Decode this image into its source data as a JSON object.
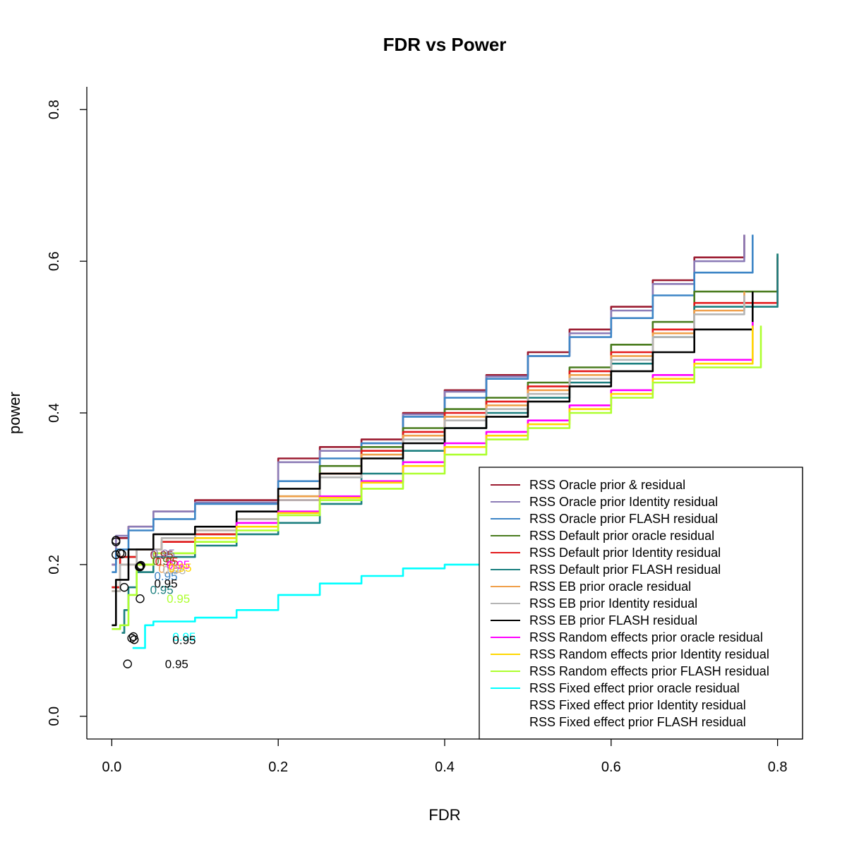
{
  "chart_data": {
    "type": "line",
    "title": "FDR vs Power",
    "xlabel": "FDR",
    "ylabel": "power",
    "xlim": [
      -0.03,
      0.83
    ],
    "ylim": [
      -0.03,
      0.83
    ],
    "x_ticks": [
      "0.0",
      "0.2",
      "0.4",
      "0.6",
      "0.8"
    ],
    "y_ticks": [
      "0.0",
      "0.2",
      "0.4",
      "0.6",
      "0.8"
    ],
    "grid": false,
    "legend_position": "bottom-right",
    "threshold_label": "0.95",
    "series": [
      {
        "name": "RSS Oracle prior & residual",
        "color": "#9b1b30",
        "x": [
          0.0,
          0.005,
          0.02,
          0.05,
          0.1,
          0.2,
          0.25,
          0.3,
          0.35,
          0.4,
          0.45,
          0.5,
          0.55,
          0.6,
          0.65,
          0.7,
          0.76
        ],
        "y": [
          0.2,
          0.235,
          0.25,
          0.27,
          0.285,
          0.34,
          0.355,
          0.365,
          0.4,
          0.43,
          0.45,
          0.48,
          0.51,
          0.54,
          0.575,
          0.605,
          0.635
        ],
        "thresholds": [
          {
            "x": 0.005,
            "y": 0.232
          },
          {
            "x": 0.06,
            "y": 0.213
          }
        ]
      },
      {
        "name": "RSS Oracle prior Identity residual",
        "color": "#8c7cb7",
        "x": [
          0.0,
          0.005,
          0.02,
          0.05,
          0.1,
          0.2,
          0.25,
          0.3,
          0.35,
          0.4,
          0.45,
          0.5,
          0.55,
          0.6,
          0.65,
          0.7,
          0.76
        ],
        "y": [
          0.2,
          0.238,
          0.25,
          0.27,
          0.282,
          0.335,
          0.35,
          0.36,
          0.398,
          0.428,
          0.448,
          0.475,
          0.505,
          0.535,
          0.57,
          0.6,
          0.635
        ],
        "thresholds": [
          {
            "x": 0.005,
            "y": 0.23
          },
          {
            "x": 0.062,
            "y": 0.215
          }
        ]
      },
      {
        "name": "RSS Oracle prior FLASH residual",
        "color": "#3d85c6",
        "x": [
          0.0,
          0.005,
          0.02,
          0.05,
          0.1,
          0.2,
          0.25,
          0.3,
          0.35,
          0.4,
          0.45,
          0.5,
          0.55,
          0.6,
          0.65,
          0.7,
          0.77
        ],
        "y": [
          0.19,
          0.22,
          0.245,
          0.26,
          0.28,
          0.31,
          0.34,
          0.36,
          0.395,
          0.42,
          0.445,
          0.475,
          0.5,
          0.525,
          0.555,
          0.585,
          0.635
        ],
        "thresholds": [
          {
            "x": 0.005,
            "y": 0.213
          },
          {
            "x": 0.065,
            "y": 0.185
          }
        ]
      },
      {
        "name": "RSS Default prior oracle residual",
        "color": "#4a7c1f",
        "x": [
          0.0,
          0.01,
          0.03,
          0.06,
          0.1,
          0.15,
          0.2,
          0.25,
          0.3,
          0.35,
          0.4,
          0.45,
          0.5,
          0.55,
          0.6,
          0.65,
          0.7,
          0.8
        ],
        "y": [
          0.17,
          0.21,
          0.22,
          0.23,
          0.24,
          0.26,
          0.29,
          0.33,
          0.355,
          0.38,
          0.405,
          0.42,
          0.44,
          0.46,
          0.49,
          0.52,
          0.56,
          0.61
        ],
        "thresholds": [
          {
            "x": 0.01,
            "y": 0.215
          },
          {
            "x": 0.063,
            "y": 0.205
          }
        ]
      },
      {
        "name": "RSS Default prior Identity residual",
        "color": "#e31a1c",
        "x": [
          0.0,
          0.01,
          0.03,
          0.06,
          0.1,
          0.15,
          0.2,
          0.25,
          0.3,
          0.35,
          0.4,
          0.45,
          0.5,
          0.55,
          0.6,
          0.65,
          0.7,
          0.8
        ],
        "y": [
          0.17,
          0.21,
          0.22,
          0.23,
          0.24,
          0.255,
          0.285,
          0.32,
          0.35,
          0.375,
          0.4,
          0.415,
          0.435,
          0.455,
          0.48,
          0.51,
          0.545,
          0.605
        ],
        "thresholds": [
          {
            "x": 0.012,
            "y": 0.214
          },
          {
            "x": 0.066,
            "y": 0.204
          }
        ]
      },
      {
        "name": "RSS Default prior FLASH residual",
        "color": "#1b7f7f",
        "x": [
          0.012,
          0.015,
          0.02,
          0.03,
          0.05,
          0.1,
          0.15,
          0.2,
          0.25,
          0.3,
          0.35,
          0.4,
          0.45,
          0.5,
          0.55,
          0.6,
          0.65,
          0.7,
          0.8
        ],
        "y": [
          0.11,
          0.14,
          0.17,
          0.19,
          0.21,
          0.225,
          0.24,
          0.255,
          0.28,
          0.32,
          0.35,
          0.38,
          0.4,
          0.42,
          0.44,
          0.465,
          0.5,
          0.54,
          0.61
        ],
        "thresholds": [
          {
            "x": 0.015,
            "y": 0.17
          },
          {
            "x": 0.06,
            "y": 0.167
          }
        ]
      },
      {
        "name": "RSS EB prior oracle residual",
        "color": "#f0a04b",
        "x": [
          0.0,
          0.01,
          0.03,
          0.06,
          0.1,
          0.15,
          0.2,
          0.25,
          0.3,
          0.35,
          0.4,
          0.45,
          0.5,
          0.55,
          0.6,
          0.65,
          0.7,
          0.76
        ],
        "y": [
          0.165,
          0.2,
          0.22,
          0.235,
          0.245,
          0.26,
          0.29,
          0.32,
          0.345,
          0.37,
          0.395,
          0.41,
          0.43,
          0.45,
          0.475,
          0.505,
          0.535,
          0.56
        ],
        "thresholds": [
          {
            "x": 0.033,
            "y": 0.197
          },
          {
            "x": 0.07,
            "y": 0.195
          }
        ]
      },
      {
        "name": "RSS EB prior Identity residual",
        "color": "#b5b5b5",
        "x": [
          0.0,
          0.01,
          0.03,
          0.06,
          0.1,
          0.15,
          0.2,
          0.25,
          0.3,
          0.35,
          0.4,
          0.45,
          0.5,
          0.55,
          0.6,
          0.65,
          0.7,
          0.76
        ],
        "y": [
          0.165,
          0.2,
          0.22,
          0.235,
          0.245,
          0.26,
          0.285,
          0.315,
          0.34,
          0.365,
          0.39,
          0.405,
          0.425,
          0.445,
          0.47,
          0.5,
          0.53,
          0.555
        ],
        "thresholds": [
          {
            "x": 0.034,
            "y": 0.198
          },
          {
            "x": 0.075,
            "y": 0.193
          }
        ]
      },
      {
        "name": "RSS EB prior FLASH residual",
        "color": "#000000",
        "x": [
          0.0,
          0.005,
          0.02,
          0.05,
          0.1,
          0.15,
          0.2,
          0.25,
          0.3,
          0.35,
          0.4,
          0.45,
          0.5,
          0.55,
          0.6,
          0.65,
          0.7,
          0.77
        ],
        "y": [
          0.12,
          0.18,
          0.22,
          0.24,
          0.25,
          0.27,
          0.3,
          0.32,
          0.34,
          0.36,
          0.38,
          0.395,
          0.415,
          0.435,
          0.455,
          0.48,
          0.51,
          0.56
        ],
        "thresholds": [
          {
            "x": 0.026,
            "y": 0.105
          },
          {
            "x": 0.065,
            "y": 0.175
          }
        ]
      },
      {
        "name": "RSS Random effects prior oracle residual",
        "color": "#ff00ff",
        "x": [
          0.03,
          0.05,
          0.1,
          0.15,
          0.2,
          0.25,
          0.3,
          0.35,
          0.4,
          0.45,
          0.5,
          0.55,
          0.6,
          0.65,
          0.7,
          0.77
        ],
        "y": [
          0.2,
          0.215,
          0.235,
          0.255,
          0.27,
          0.29,
          0.31,
          0.335,
          0.36,
          0.375,
          0.39,
          0.41,
          0.43,
          0.45,
          0.47,
          0.52
        ],
        "thresholds": [
          {
            "x": 0.034,
            "y": 0.197
          },
          {
            "x": 0.08,
            "y": 0.2
          }
        ]
      },
      {
        "name": "RSS Random effects prior Identity residual",
        "color": "#ffd700",
        "x": [
          0.03,
          0.05,
          0.1,
          0.15,
          0.2,
          0.25,
          0.3,
          0.35,
          0.4,
          0.45,
          0.5,
          0.55,
          0.6,
          0.65,
          0.7,
          0.77
        ],
        "y": [
          0.2,
          0.215,
          0.235,
          0.25,
          0.268,
          0.288,
          0.308,
          0.33,
          0.355,
          0.37,
          0.385,
          0.405,
          0.425,
          0.445,
          0.465,
          0.515
        ],
        "thresholds": [
          {
            "x": 0.035,
            "y": 0.199
          },
          {
            "x": 0.082,
            "y": 0.196
          }
        ]
      },
      {
        "name": "RSS Random effects prior FLASH residual",
        "color": "#adff2f",
        "x": [
          0.0,
          0.01,
          0.02,
          0.03,
          0.05,
          0.1,
          0.15,
          0.2,
          0.25,
          0.3,
          0.35,
          0.4,
          0.45,
          0.5,
          0.55,
          0.6,
          0.65,
          0.7,
          0.78
        ],
        "y": [
          0.115,
          0.12,
          0.16,
          0.2,
          0.215,
          0.23,
          0.245,
          0.265,
          0.285,
          0.3,
          0.32,
          0.345,
          0.365,
          0.38,
          0.4,
          0.42,
          0.44,
          0.46,
          0.515
        ],
        "thresholds": [
          {
            "x": 0.034,
            "y": 0.155
          },
          {
            "x": 0.08,
            "y": 0.155
          }
        ]
      },
      {
        "name": "RSS Fixed effect prior oracle residual",
        "color": "#00ffff",
        "x": [
          0.025,
          0.04,
          0.05,
          0.1,
          0.15,
          0.2,
          0.25,
          0.3,
          0.35,
          0.4,
          0.45,
          0.5,
          0.55,
          0.6,
          0.65,
          0.7,
          0.76
        ],
        "y": [
          0.09,
          0.12,
          0.125,
          0.13,
          0.14,
          0.16,
          0.175,
          0.185,
          0.195,
          0.2,
          0.205,
          0.215,
          0.225,
          0.235,
          0.245,
          0.255,
          0.265
        ],
        "thresholds": [
          {
            "x": 0.024,
            "y": 0.103
          },
          {
            "x": 0.087,
            "y": 0.105
          }
        ]
      },
      {
        "name": "RSS Fixed effect prior Identity residual",
        "color": "#ffffff",
        "x": [],
        "y": [],
        "thresholds": [
          {
            "x": 0.027,
            "y": 0.101
          },
          {
            "x": 0.087,
            "y": 0.101
          }
        ]
      },
      {
        "name": "RSS Fixed effect prior FLASH residual",
        "color": "#ffffff",
        "x": [],
        "y": [],
        "thresholds": [
          {
            "x": 0.019,
            "y": 0.069
          },
          {
            "x": 0.078,
            "y": 0.069
          }
        ]
      }
    ]
  }
}
